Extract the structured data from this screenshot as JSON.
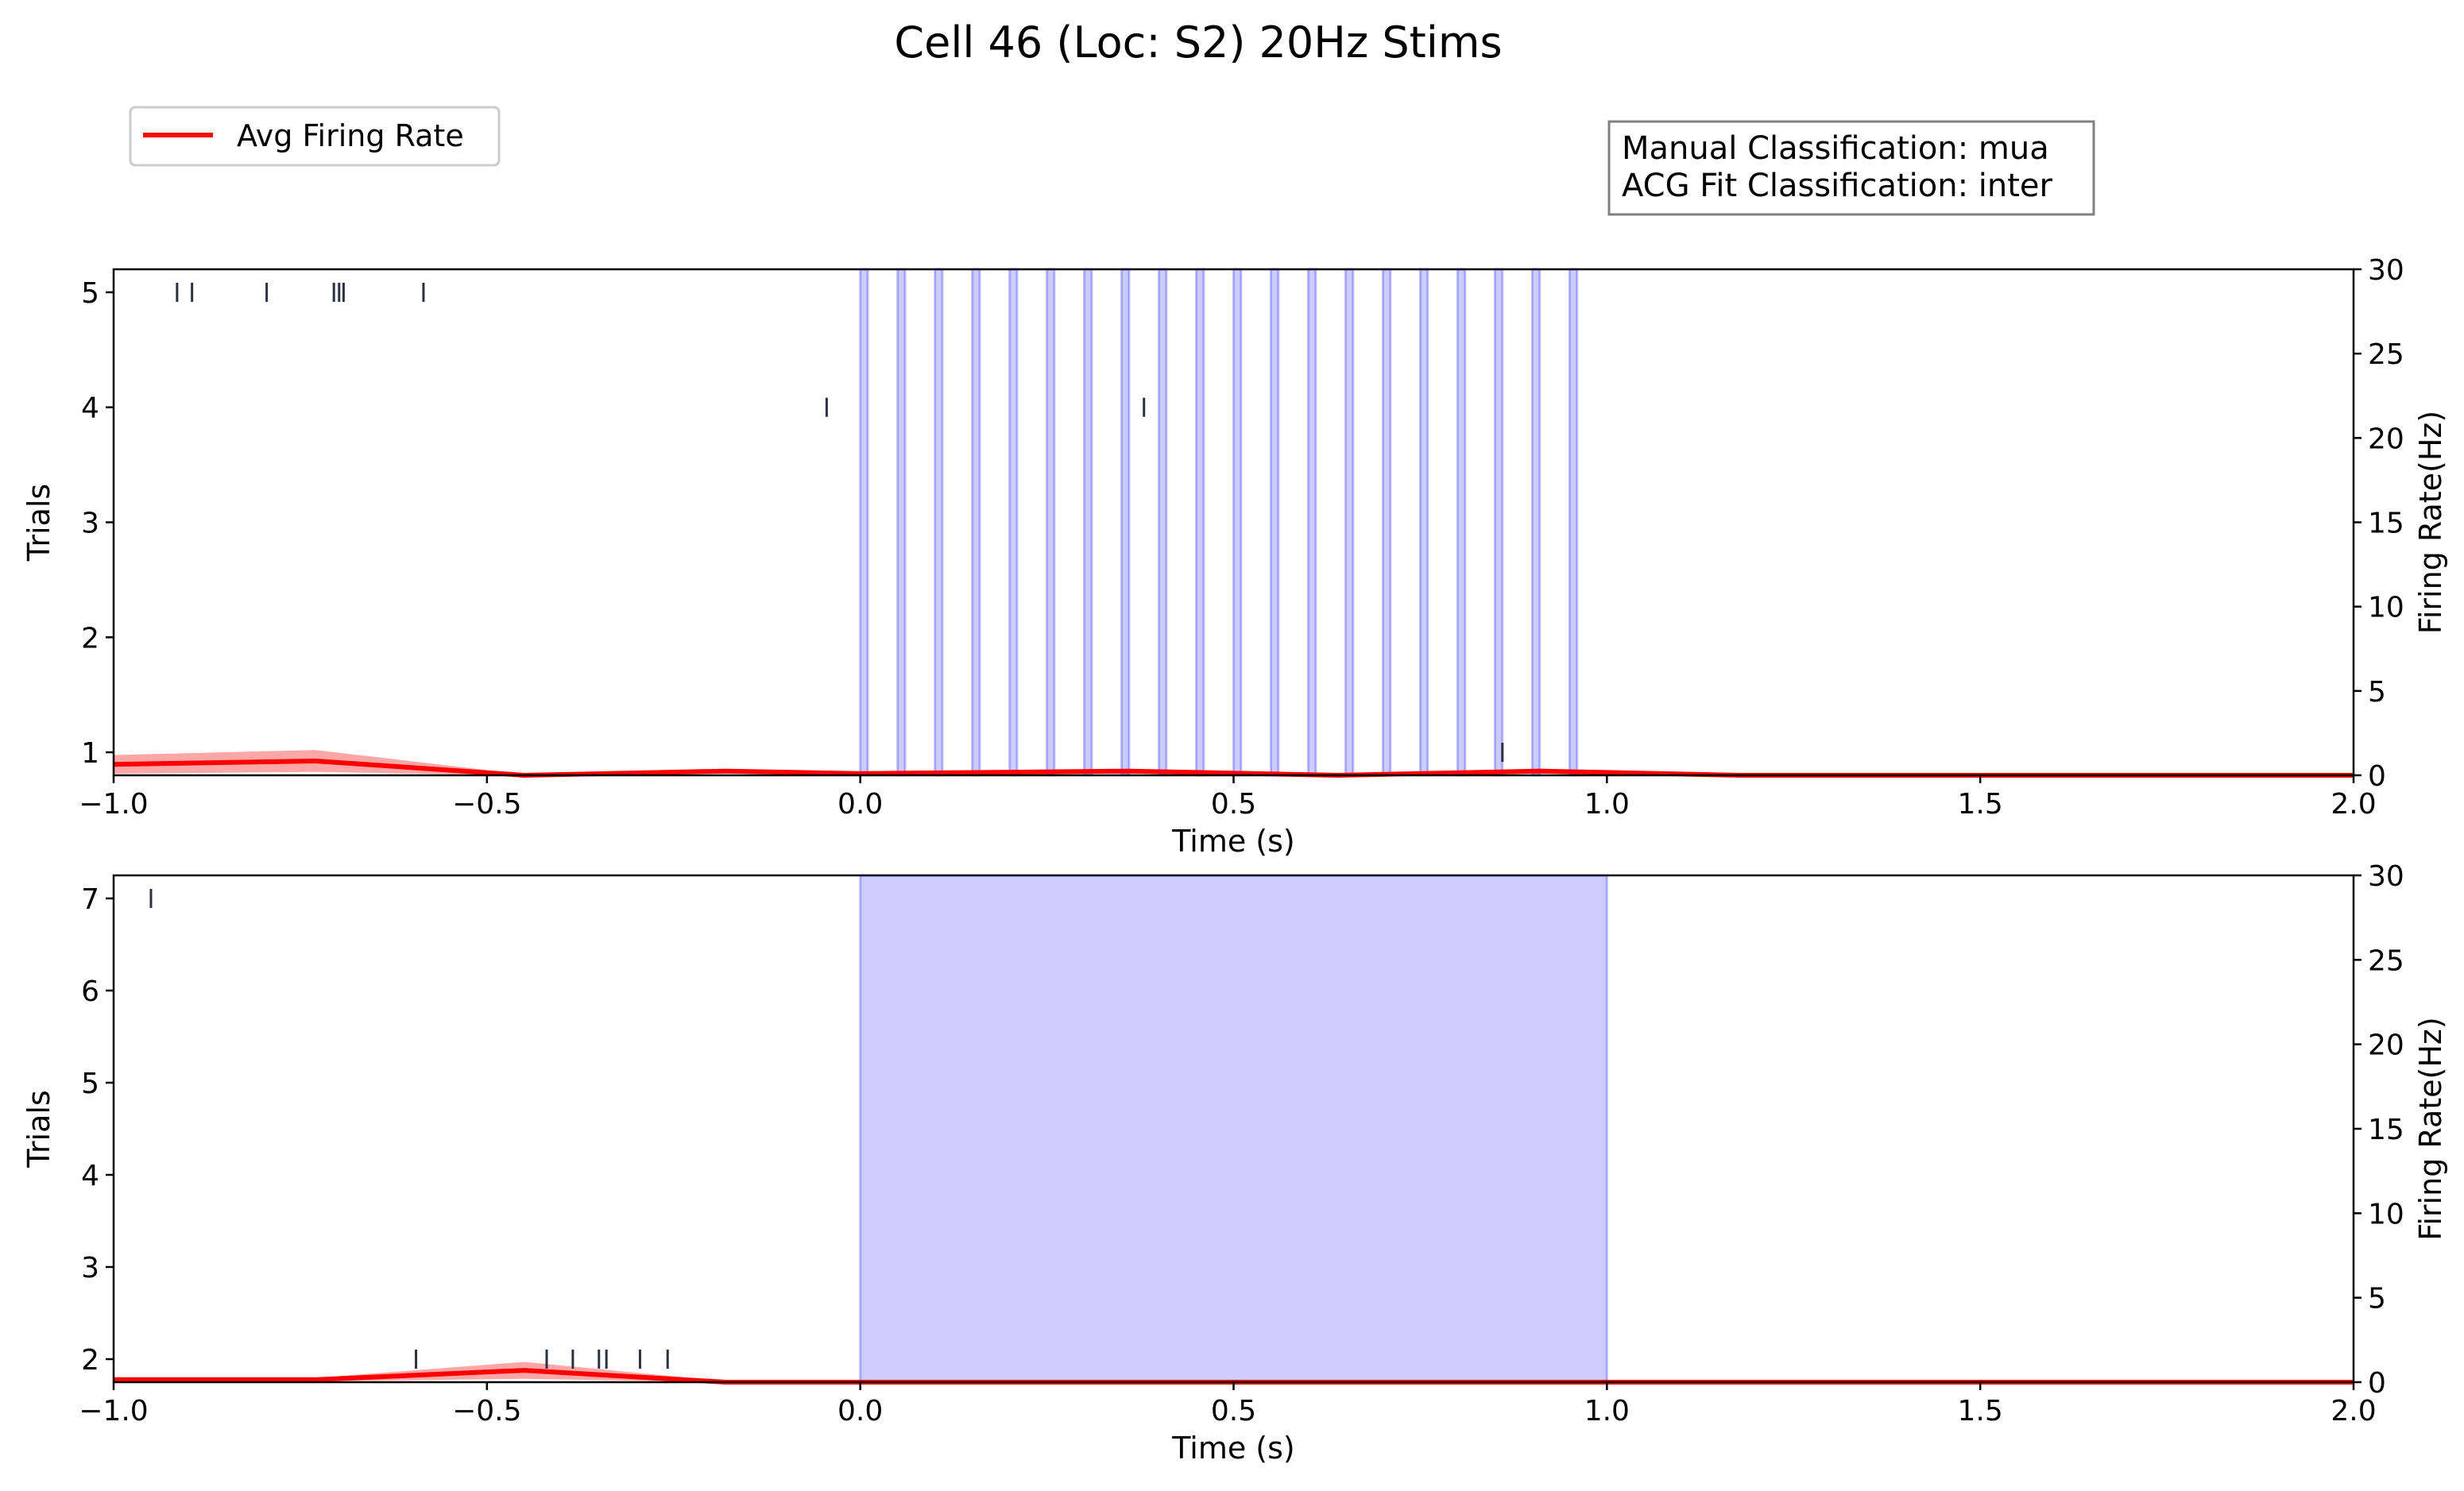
{
  "figure": {
    "title": "Cell 46 (Loc: S2) 20Hz Stims",
    "legend": {
      "label": "Avg Firing Rate",
      "color": "#ff0000",
      "placement": "upper-left"
    },
    "info_box": {
      "line1": "Manual Classification: mua",
      "line2": "ACG Fit Classification: inter"
    }
  },
  "chart_data": [
    {
      "type": "raster+line",
      "xlabel": "Time (s)",
      "ylabel_left": "Trials",
      "ylabel_right": "Firing Rate(Hz)",
      "xlim": [
        -1.0,
        2.0
      ],
      "ylim_left": [
        0.8,
        5.2
      ],
      "ylim_right": [
        0,
        30
      ],
      "x_ticks": [
        -1.0,
        -0.5,
        0.0,
        0.5,
        1.0,
        1.5,
        2.0
      ],
      "x_tick_labels": [
        "−1.0",
        "−0.5",
        "0.0",
        "0.5",
        "1.0",
        "1.5",
        "2.0"
      ],
      "y_ticks_left": [
        1,
        2,
        3,
        4,
        5
      ],
      "y_tick_labels_left": [
        "1",
        "2",
        "3",
        "4",
        "5"
      ],
      "y_ticks_right": [
        0,
        5,
        10,
        15,
        20,
        25,
        30
      ],
      "y_tick_labels_right": [
        "0",
        "5",
        "10",
        "15",
        "20",
        "25",
        "30"
      ],
      "stim_color": "#0000ff",
      "stim_pulses": [
        [
          0.0,
          0.01
        ],
        [
          0.05,
          0.06
        ],
        [
          0.1,
          0.11
        ],
        [
          0.15,
          0.16
        ],
        [
          0.2,
          0.21
        ],
        [
          0.25,
          0.26
        ],
        [
          0.3,
          0.31
        ],
        [
          0.35,
          0.36
        ],
        [
          0.4,
          0.41
        ],
        [
          0.45,
          0.46
        ],
        [
          0.5,
          0.51
        ],
        [
          0.55,
          0.56
        ],
        [
          0.6,
          0.61
        ],
        [
          0.65,
          0.66
        ],
        [
          0.7,
          0.71
        ],
        [
          0.75,
          0.76
        ],
        [
          0.8,
          0.81
        ],
        [
          0.85,
          0.86
        ],
        [
          0.9,
          0.91
        ],
        [
          0.95,
          0.96
        ]
      ],
      "spikes": [
        {
          "trial": 5,
          "times": [
            -0.915,
            -0.895,
            -0.795,
            -0.705,
            -0.698,
            -0.692,
            -0.585
          ]
        },
        {
          "trial": 4,
          "times": [
            -0.045,
            0.38
          ]
        },
        {
          "trial": 1,
          "times": [
            0.86
          ]
        }
      ],
      "firing_rate": {
        "x": [
          -1.0,
          -0.73,
          -0.45,
          -0.18,
          0.0,
          0.36,
          0.64,
          0.91,
          1.18,
          1.45,
          1.73,
          2.0
        ],
        "mean": [
          0.65,
          0.85,
          0.0,
          0.25,
          0.1,
          0.25,
          0.0,
          0.25,
          0.0,
          0.0,
          0.0,
          0.0
        ],
        "upper": [
          1.2,
          1.5,
          0.05,
          0.35,
          0.15,
          0.35,
          0.05,
          0.4,
          0.0,
          0.0,
          0.0,
          0.0
        ],
        "lower": [
          0.1,
          0.2,
          0.0,
          0.15,
          0.05,
          0.15,
          0.0,
          0.1,
          0.0,
          0.0,
          0.0,
          0.0
        ]
      }
    },
    {
      "type": "raster+line",
      "xlabel": "Time (s)",
      "ylabel_left": "Trials",
      "ylabel_right": "Firing Rate(Hz)",
      "xlim": [
        -1.0,
        2.0
      ],
      "ylim_left": [
        1.75,
        7.25
      ],
      "ylim_right": [
        0,
        30
      ],
      "x_ticks": [
        -1.0,
        -0.5,
        0.0,
        0.5,
        1.0,
        1.5,
        2.0
      ],
      "x_tick_labels": [
        "−1.0",
        "−0.5",
        "0.0",
        "0.5",
        "1.0",
        "1.5",
        "2.0"
      ],
      "y_ticks_left": [
        2,
        3,
        4,
        5,
        6,
        7
      ],
      "y_tick_labels_left": [
        "2",
        "3",
        "4",
        "5",
        "6",
        "7"
      ],
      "y_ticks_right": [
        0,
        5,
        10,
        15,
        20,
        25,
        30
      ],
      "y_tick_labels_right": [
        "0",
        "5",
        "10",
        "15",
        "20",
        "25",
        "30"
      ],
      "stim_color": "#0000ff",
      "stim_pulses": [
        [
          0.0,
          1.0
        ]
      ],
      "spikes": [
        {
          "trial": 7,
          "times": [
            -0.95
          ]
        },
        {
          "trial": 2,
          "times": [
            -0.595,
            -0.42,
            -0.385,
            -0.35,
            -0.34,
            -0.295,
            -0.258
          ]
        }
      ],
      "firing_rate": {
        "x": [
          -1.0,
          -0.73,
          -0.45,
          -0.18,
          0.0,
          0.36,
          0.64,
          0.91,
          1.18,
          1.45,
          1.73,
          2.0
        ],
        "mean": [
          0.15,
          0.15,
          0.7,
          0.0,
          0.0,
          0.0,
          0.0,
          0.0,
          0.0,
          0.0,
          0.0,
          0.0
        ],
        "upper": [
          0.25,
          0.25,
          1.2,
          0.05,
          0.0,
          0.0,
          0.0,
          0.0,
          0.0,
          0.0,
          0.0,
          0.0
        ],
        "lower": [
          0.05,
          0.05,
          0.2,
          0.0,
          0.0,
          0.0,
          0.0,
          0.0,
          0.0,
          0.0,
          0.0,
          0.0
        ]
      }
    }
  ]
}
